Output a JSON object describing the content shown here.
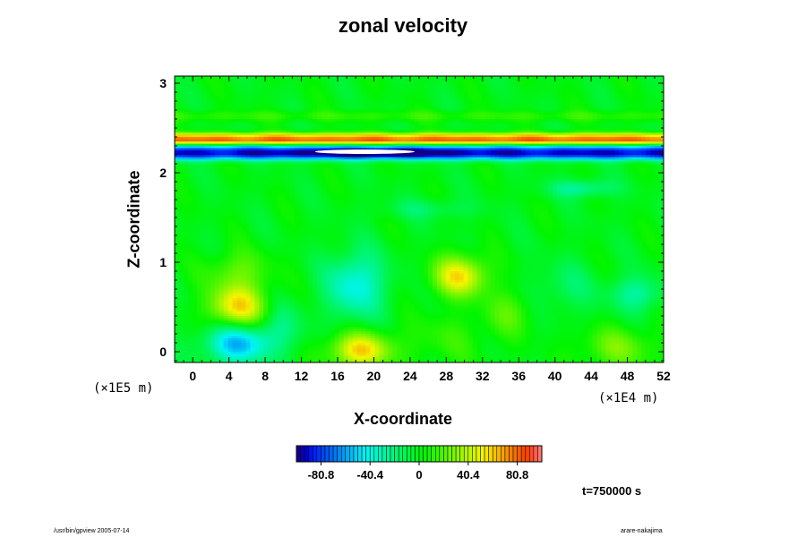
{
  "chart_data": {
    "type": "heatmap",
    "title": "zonal velocity",
    "xlabel": "X-coordinate",
    "ylabel": "Z-coordinate",
    "x_scale_suffix": "(×1E4 m)",
    "y_scale_suffix": "(×1E5 m)",
    "xlim": [
      -2,
      52
    ],
    "ylim": [
      -0.12,
      3.08
    ],
    "x_ticks": [
      0,
      4,
      8,
      12,
      16,
      20,
      24,
      28,
      32,
      36,
      40,
      44,
      48,
      52
    ],
    "y_ticks": [
      0,
      1,
      2,
      3
    ],
    "colorbar": {
      "range": [
        -101,
        101
      ],
      "ticks": [
        -80.8,
        -40.4,
        0,
        40.4,
        80.8
      ],
      "tick_labels": [
        "-80.8",
        "-40.4",
        "0",
        "40.4",
        "80.8"
      ],
      "colormap": "rainbow"
    },
    "background_value": 0,
    "features": [
      {
        "x": 0,
        "z": 2.37,
        "sx": 0,
        "sz": 0.035,
        "value": 80
      },
      {
        "x": 0,
        "z": 2.28,
        "sx": 0,
        "sz": 0.035,
        "value": -45
      },
      {
        "x": 0,
        "z": 2.21,
        "sx": 0,
        "sz": 0.045,
        "value": -85
      },
      {
        "x": 0,
        "z": 2.43,
        "sx": 0,
        "sz": 0.025,
        "value": 30
      },
      {
        "x": 0,
        "z": 2.64,
        "sx": 0,
        "sz": 0.04,
        "value": 12
      },
      {
        "x": 20,
        "z": 2.23,
        "sx": 5,
        "sz": 0.03,
        "value": -40
      },
      {
        "x": 43,
        "z": 1.83,
        "sx": 2.5,
        "sz": 0.07,
        "value": -28
      },
      {
        "x": 26,
        "z": 1.6,
        "sx": 3.5,
        "sz": 0.08,
        "value": -15
      },
      {
        "x": 5,
        "z": 0.5,
        "sx": 2.2,
        "sz": 0.17,
        "value": 58
      },
      {
        "x": 5,
        "z": 0.9,
        "sx": 2.5,
        "sz": 0.17,
        "value": 22
      },
      {
        "x": 5,
        "z": 0.1,
        "sx": 2.6,
        "sz": 0.16,
        "value": -58
      },
      {
        "x": 10,
        "z": 0.3,
        "sx": 1.6,
        "sz": 0.2,
        "value": -18
      },
      {
        "x": 18,
        "z": 0.75,
        "sx": 2.3,
        "sz": 0.26,
        "value": -42
      },
      {
        "x": 18.5,
        "z": 0.02,
        "sx": 2.4,
        "sz": 0.14,
        "value": 58
      },
      {
        "x": 29.5,
        "z": 0.85,
        "sx": 2.1,
        "sz": 0.16,
        "value": 55
      },
      {
        "x": 35,
        "z": 0.45,
        "sx": 2.0,
        "sz": 0.18,
        "value": 18
      },
      {
        "x": 41,
        "z": 0.72,
        "sx": 2.5,
        "sz": 0.2,
        "value": -15
      },
      {
        "x": 49,
        "z": 0.65,
        "sx": 2.0,
        "sz": 0.14,
        "value": -28
      },
      {
        "x": 47,
        "z": 0.05,
        "sx": 3.0,
        "sz": 0.16,
        "value": 25
      },
      {
        "x": 28,
        "z": 0.15,
        "sx": 3.5,
        "sz": 0.2,
        "value": 12
      }
    ],
    "missing_region": {
      "x_range": [
        13.5,
        24.5
      ],
      "z_range": [
        2.22,
        2.25
      ]
    }
  },
  "time_label": "t=750000 s",
  "footer": {
    "left": "/usr/bin/gpview 2005-07-14",
    "right": "arare-nakajima"
  }
}
